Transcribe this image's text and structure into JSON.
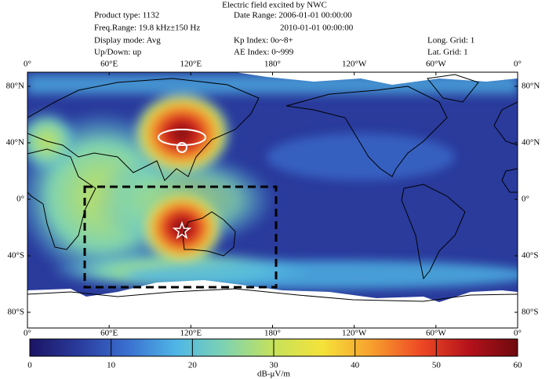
{
  "title": "Electric field excited by NWC",
  "info": {
    "product_type": "Product type: 1132",
    "freq_range": "Freq.Range: 19.8 kHz±150 Hz",
    "display_mode": "Display mode: Avg",
    "up_down": "Up/Down: up",
    "date_range": "Date Range: 2006-01-01 00:00:00",
    "date_end": "2010-01-01 00:00:00",
    "kp_index": "Kp Index: 0o~8+",
    "ae_index": "AE Index: 0~999",
    "long_grid": "Long. Grid: 1",
    "lat_grid": "Lat. Grid: 1"
  },
  "map": {
    "lon_labels": [
      "0°",
      "60°E",
      "120°E",
      "180°",
      "120°W",
      "60°W",
      "0°"
    ],
    "lat_labels": [
      "80°N",
      "40°N",
      "0°",
      "40°S",
      "80°S"
    ]
  },
  "colorbar": {
    "label": "dB-μV/m",
    "lim": [
      0,
      60
    ],
    "ticks": [
      0,
      10,
      20,
      30,
      40,
      50,
      60
    ],
    "colormap": [
      "#1b1464",
      "#2a3b9c",
      "#3a6fd0",
      "#4fb6e6",
      "#7fd3b0",
      "#c6e25a",
      "#f5e23a",
      "#f7a02e",
      "#ee4a25",
      "#b5121b",
      "#6e0a0e"
    ]
  }
}
